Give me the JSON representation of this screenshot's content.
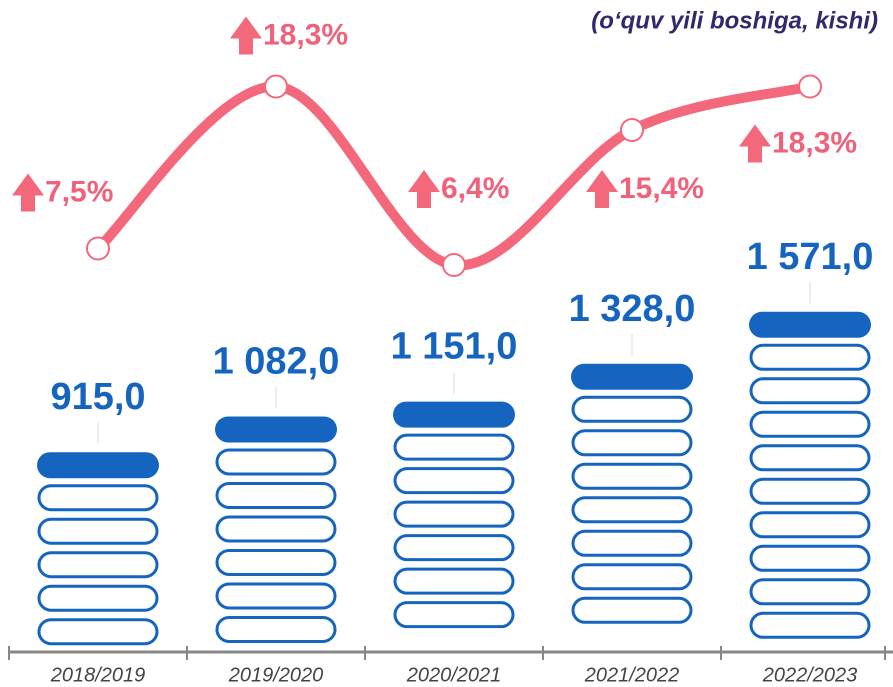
{
  "chart_data": {
    "type": "bar",
    "subtitle": "(o‘quv yili boshiga, kishi)",
    "categories": [
      "2018/2019",
      "2019/2020",
      "2020/2021",
      "2021/2022",
      "2022/2023"
    ],
    "values": [
      915,
      1082,
      1151,
      1328,
      1571
    ],
    "value_labels": [
      "915,0",
      "1 082,0",
      "1 151,0",
      "1 328,0",
      "1 571,0"
    ],
    "color": "#1565c0",
    "ylim": [
      0,
      3000
    ],
    "series": [
      {
        "type": "line",
        "axis": "y2",
        "color": "#f4687c",
        "values": [
          7.5,
          18.3,
          6.4,
          15.4,
          18.3
        ],
        "value_labels": [
          "7,5%",
          "18,3%",
          "6,4%",
          "15,4%",
          "18,3%"
        ]
      }
    ],
    "y2lim": [
      0,
      24
    ]
  }
}
